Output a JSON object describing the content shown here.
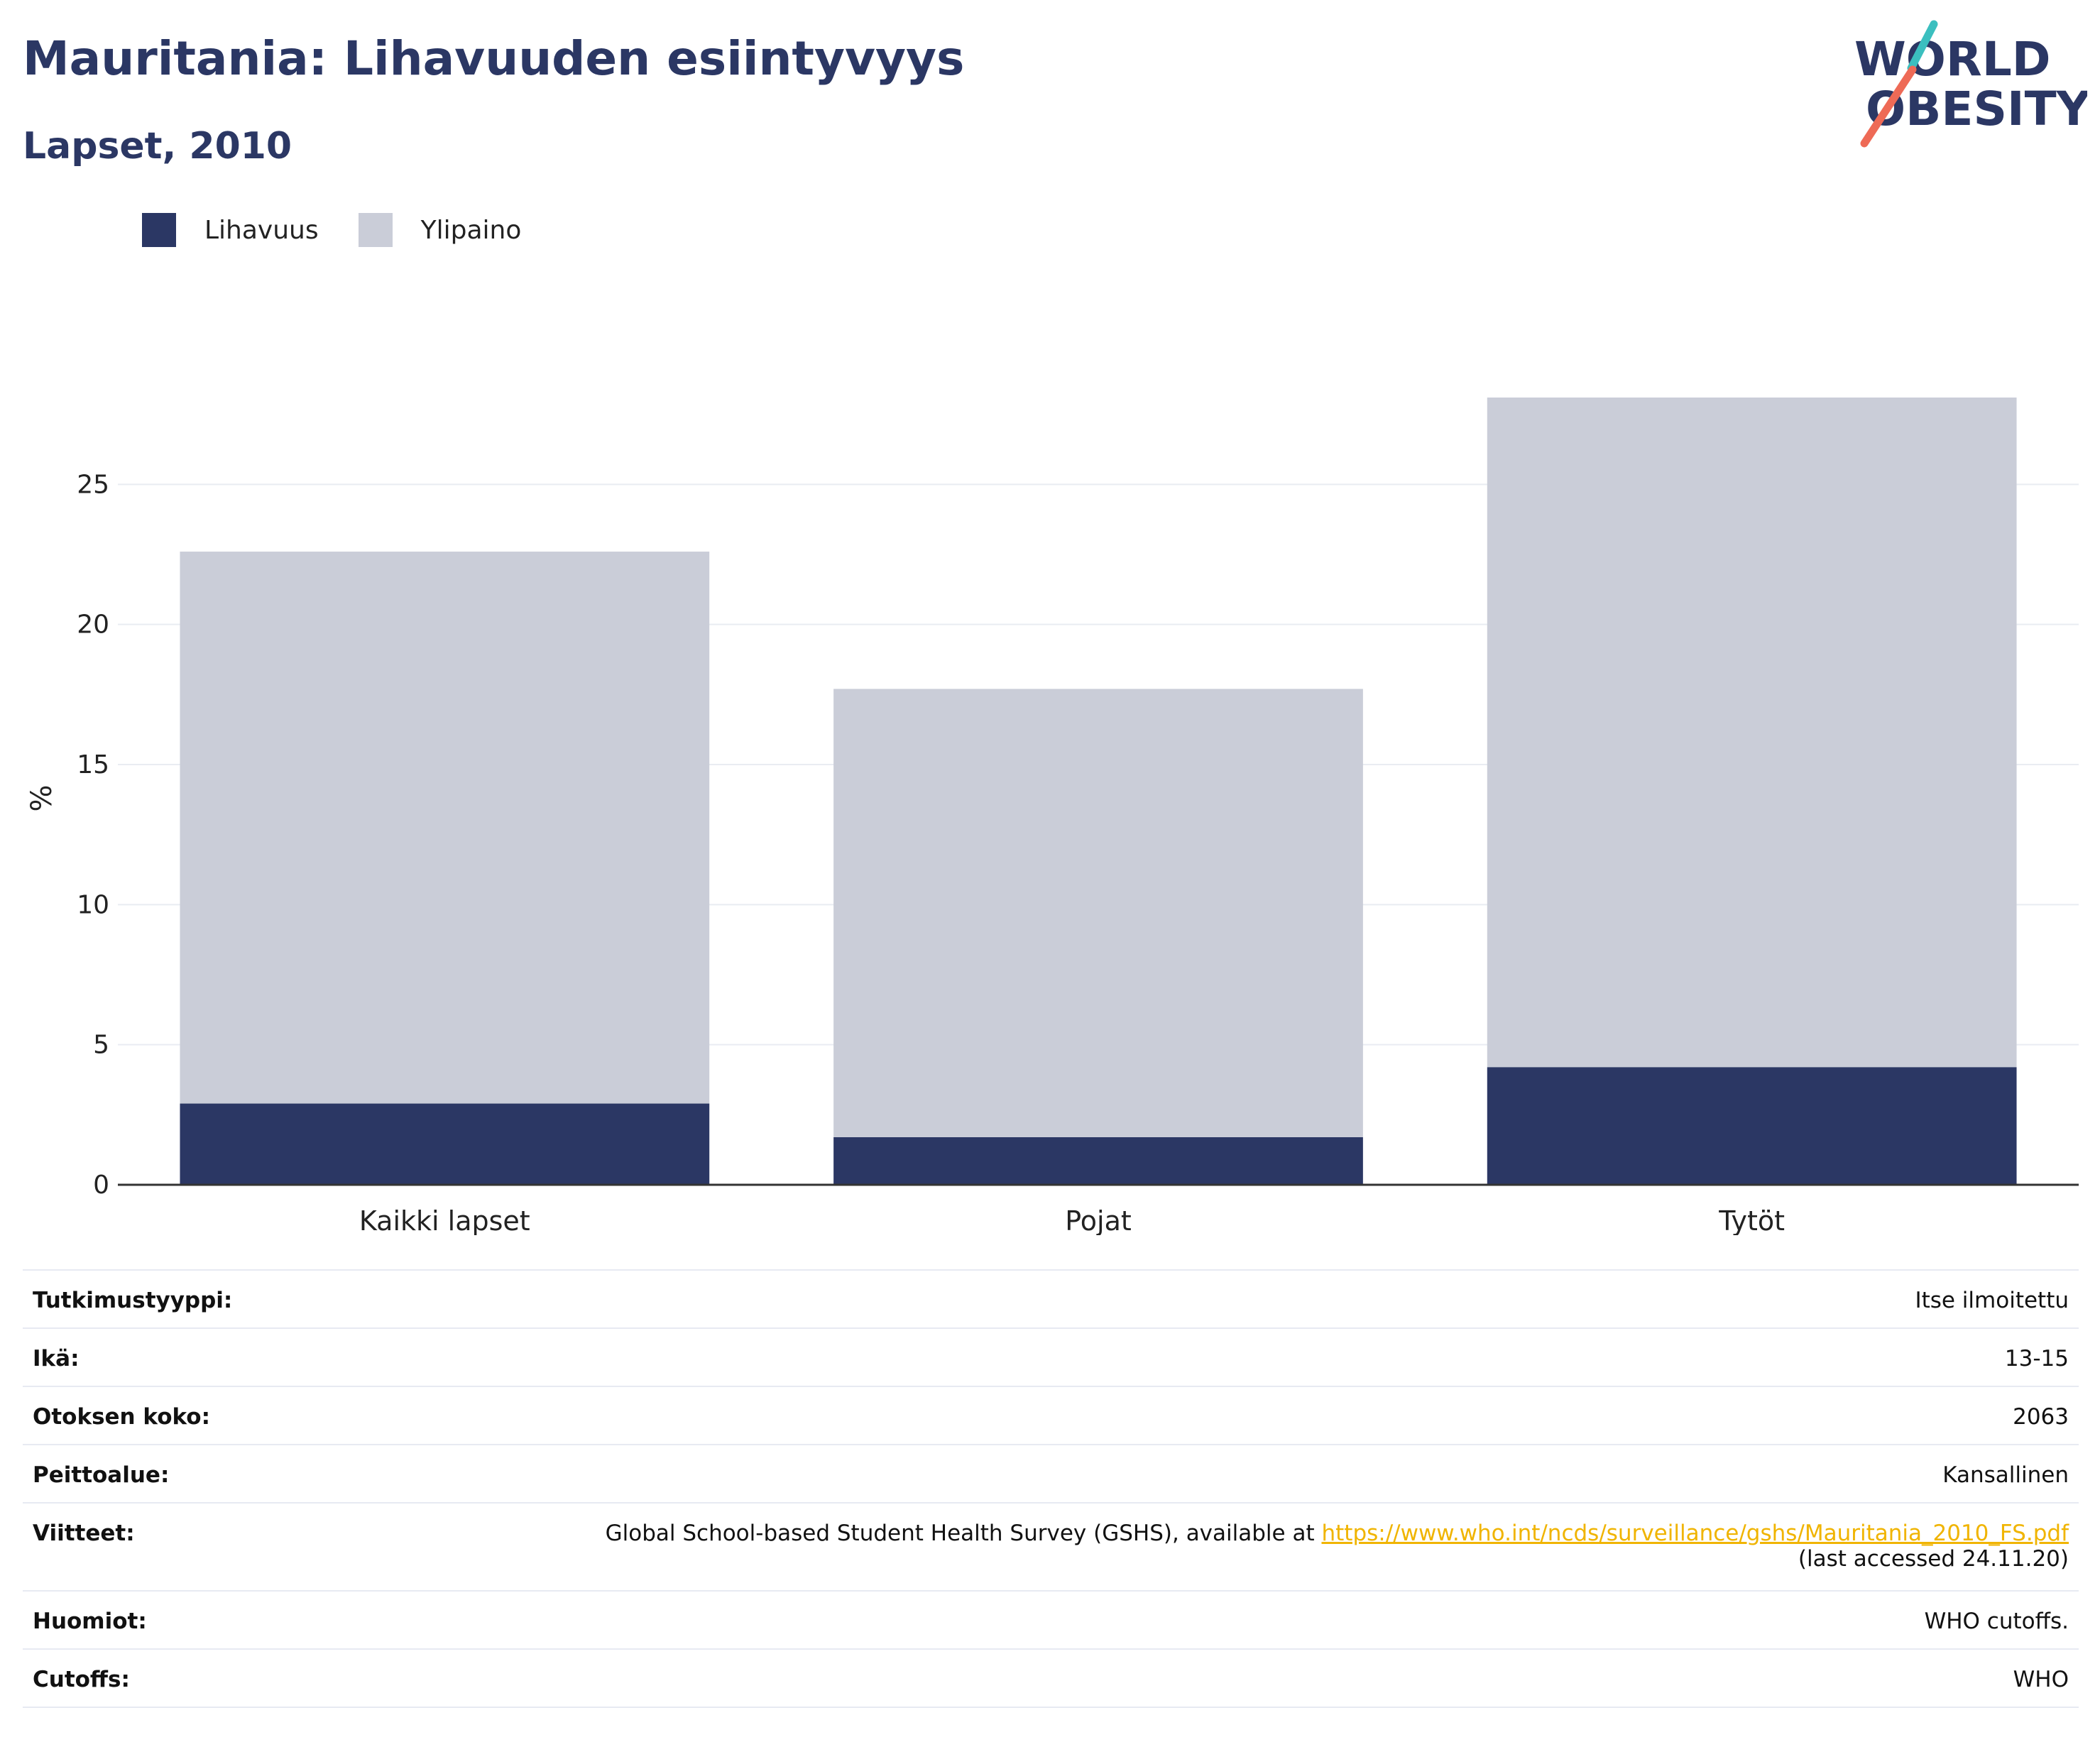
{
  "header": {
    "title": "Mauritania: Lihavuuden esiintyvyys",
    "subtitle": "Lapset, 2010",
    "logo_line1": "WORLD",
    "logo_line2": "OBESITY"
  },
  "colors": {
    "obesity": "#2b3764",
    "overweight": "#cacdd8",
    "title": "#2b3764",
    "grid": "#e9ecf2",
    "axis": "#333333",
    "link": "#f0b400"
  },
  "legend": [
    {
      "label": "Lihavuus",
      "color": "#2b3764"
    },
    {
      "label": "Ylipaino",
      "color": "#cacdd8"
    }
  ],
  "chart_data": {
    "type": "bar",
    "stacked": true,
    "categories": [
      "Kaikki lapset",
      "Pojat",
      "Tytöt"
    ],
    "series": [
      {
        "name": "Lihavuus",
        "values": [
          2.9,
          1.7,
          4.2
        ]
      },
      {
        "name": "Ylipaino",
        "values": [
          19.7,
          16.0,
          23.9
        ]
      }
    ],
    "title": "Mauritania: Lihavuuden esiintyvyys",
    "subtitle": "Lapset, 2010",
    "xlabel": "",
    "ylabel": "%",
    "ylim": [
      0,
      28.1
    ],
    "yticks": [
      0,
      5,
      10,
      15,
      20,
      25
    ],
    "grid": true,
    "legend_position": "top-left"
  },
  "info": [
    {
      "key": "Tutkimustyyppi:",
      "value": "Itse ilmoitettu"
    },
    {
      "key": "Ikä:",
      "value": "13-15"
    },
    {
      "key": "Otoksen koko:",
      "value": "2063"
    },
    {
      "key": "Peittoalue:",
      "value": "Kansallinen"
    },
    {
      "key": "Viitteet:",
      "value": "Global School-based Student Health Survey (GSHS), available at ",
      "link": "https://www.who.int/ncds/surveillance/gshs/Mauritania_2010_FS.pdf",
      "note": "(last accessed 24.11.20)"
    },
    {
      "key": "Huomiot:",
      "value": "WHO cutoffs."
    },
    {
      "key": "Cutoffs:",
      "value": "WHO"
    }
  ]
}
